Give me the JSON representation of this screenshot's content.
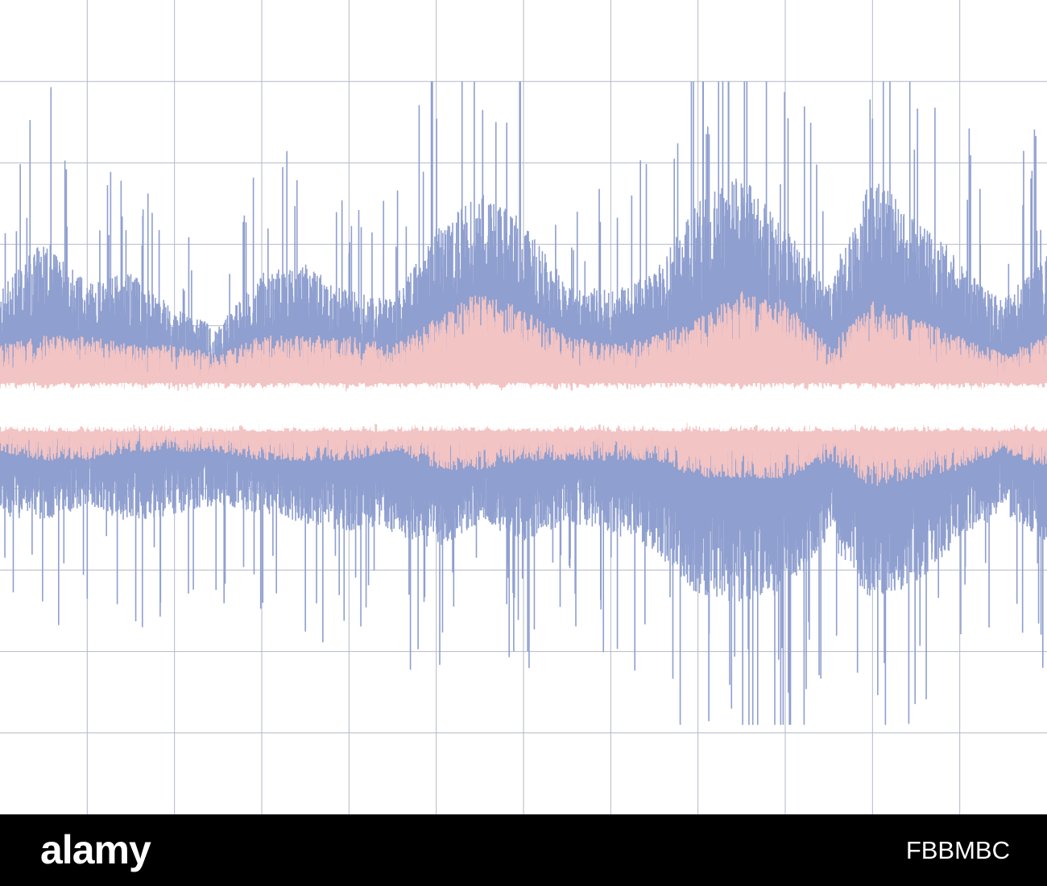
{
  "chart_data": {
    "type": "area",
    "title": "",
    "xlabel": "",
    "ylabel": "",
    "grid": true,
    "xlim": [
      0,
      12
    ],
    "ylim": [
      -5,
      5
    ],
    "grid_color": "#b3b8c8",
    "background": "#ffffff",
    "series": [
      {
        "color": "#8f9fcf",
        "envelope_x": [
          0,
          0.5,
          1,
          1.5,
          2,
          2.5,
          3,
          3.5,
          4,
          4.5,
          5,
          5.5,
          6,
          6.5,
          7,
          7.5,
          8,
          8.5,
          9,
          9.5,
          10,
          10.5,
          11,
          11.5,
          12
        ],
        "upper": [
          1.3,
          1.9,
          1.4,
          1.5,
          1.1,
          0.9,
          1.5,
          1.6,
          1.3,
          1.2,
          2.0,
          2.4,
          2.1,
          1.4,
          1.3,
          1.5,
          2.3,
          2.6,
          2.0,
          1.4,
          2.6,
          2.1,
          1.7,
          1.2,
          1.7
        ],
        "lower": [
          -1.2,
          -1.3,
          -1.1,
          -1.3,
          -1.2,
          -1.1,
          -1.2,
          -1.3,
          -1.4,
          -1.4,
          -1.6,
          -1.3,
          -1.5,
          -1.3,
          -1.4,
          -1.6,
          -2.1,
          -2.2,
          -2.1,
          -1.5,
          -2.2,
          -2.0,
          -1.5,
          -1.2,
          -1.5
        ],
        "peak_max": 4.0,
        "peak_min": -3.9
      },
      {
        "color": "#f3c4c4",
        "envelope_x": [
          0,
          0.5,
          1,
          1.5,
          2,
          2.5,
          3,
          3.5,
          4,
          4.5,
          5,
          5.5,
          6,
          6.5,
          7,
          7.5,
          8,
          8.5,
          9,
          9.5,
          10,
          10.5,
          11,
          11.5,
          12
        ],
        "upper": [
          0.7,
          0.8,
          0.8,
          0.7,
          0.7,
          0.6,
          0.8,
          0.8,
          0.8,
          0.7,
          1.0,
          1.3,
          1.1,
          0.8,
          0.7,
          0.8,
          1.0,
          1.3,
          1.2,
          0.7,
          1.2,
          1.0,
          0.8,
          0.6,
          0.8
        ],
        "lower": [
          -0.5,
          -0.6,
          -0.6,
          -0.5,
          -0.5,
          -0.5,
          -0.6,
          -0.6,
          -0.6,
          -0.5,
          -0.7,
          -0.7,
          -0.6,
          -0.6,
          -0.6,
          -0.6,
          -0.8,
          -0.8,
          -0.8,
          -0.6,
          -0.9,
          -0.8,
          -0.7,
          -0.5,
          -0.7
        ]
      }
    ]
  },
  "watermark": {
    "brand": "alamy",
    "image_id": "FBBMBC"
  }
}
